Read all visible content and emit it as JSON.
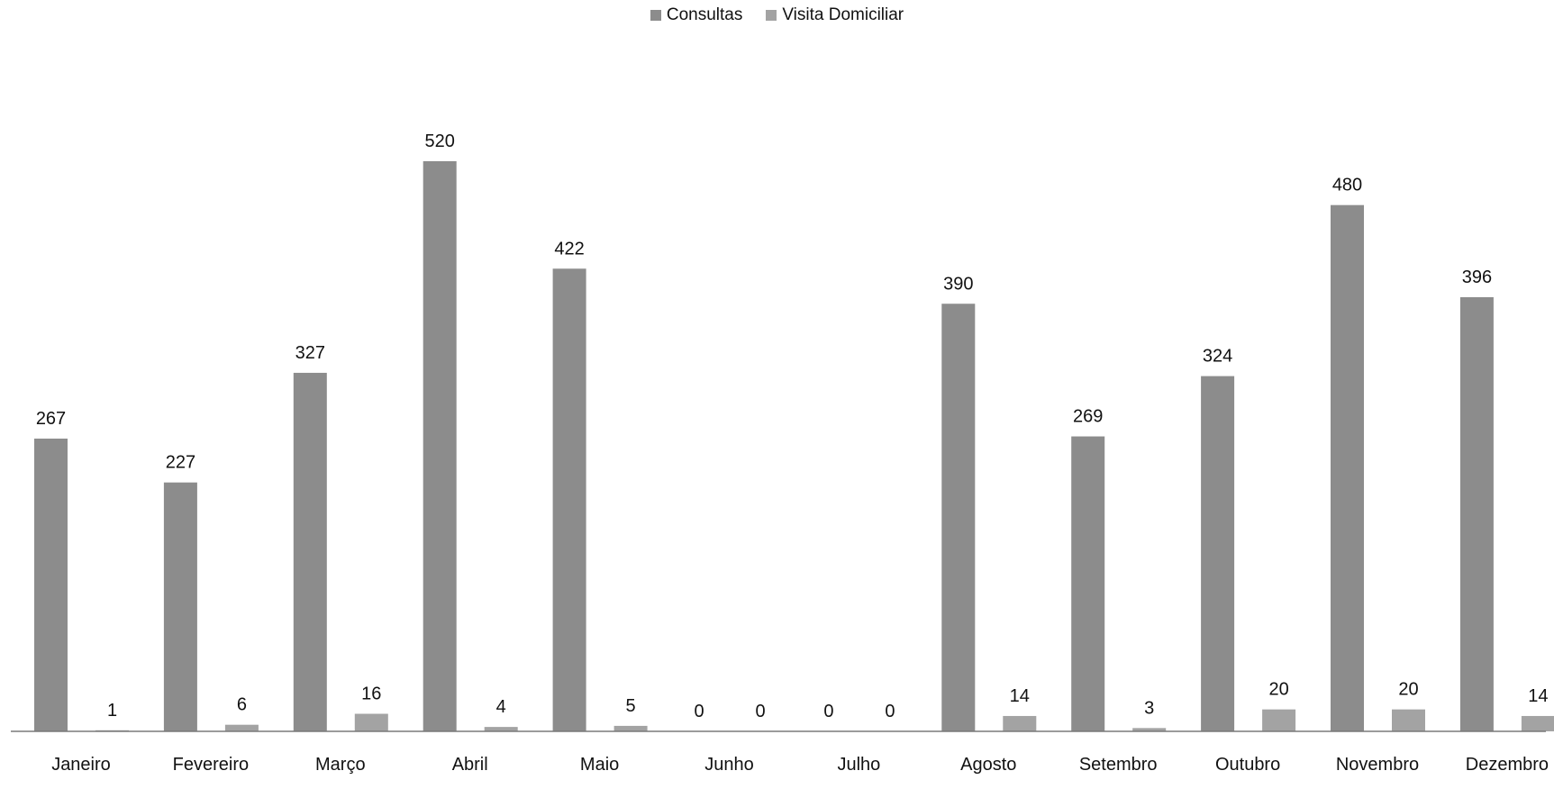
{
  "chart_data": {
    "type": "bar",
    "title": "",
    "xlabel": "",
    "ylabel": "",
    "ylim": [
      0,
      520
    ],
    "grid": false,
    "legend_position": "top-center",
    "categories": [
      "Janeiro",
      "Fevereiro",
      "Março",
      "Abril",
      "Maio",
      "Junho",
      "Julho",
      "Agosto",
      "Setembro",
      "Outubro",
      "Novembro",
      "Dezembro"
    ],
    "series": [
      {
        "name": "Consultas",
        "color": "#8c8c8c",
        "values": [
          267,
          227,
          327,
          520,
          422,
          0,
          0,
          390,
          269,
          324,
          480,
          396
        ]
      },
      {
        "name": "Visita Domiciliar",
        "color": "#a3a3a3",
        "values": [
          1,
          6,
          16,
          4,
          5,
          0,
          0,
          14,
          3,
          20,
          20,
          14
        ]
      }
    ]
  }
}
